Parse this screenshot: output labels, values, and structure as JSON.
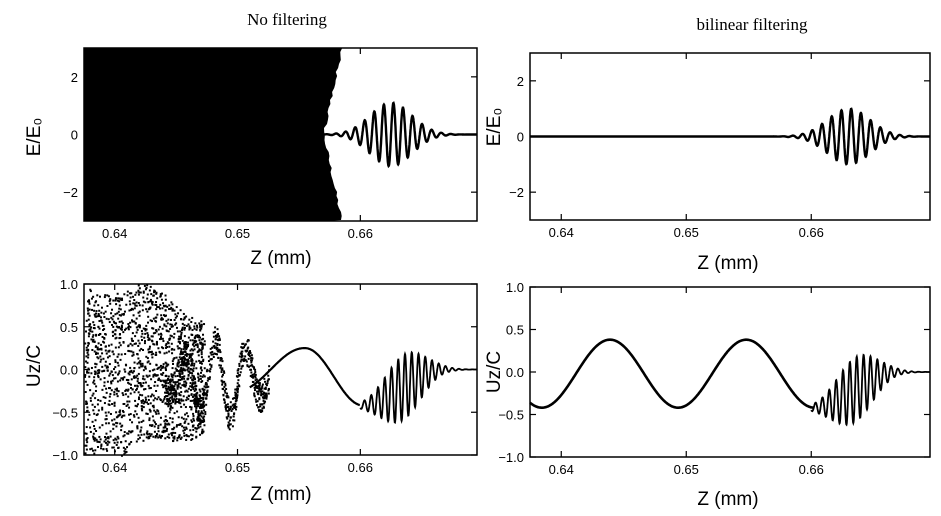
{
  "chart_data": [
    {
      "type": "line",
      "title": "No filtering",
      "xlabel": "Z (mm)",
      "ylabel": "E/E₀",
      "xlim": [
        0.6375,
        0.6695
      ],
      "ylim": [
        -3,
        3
      ],
      "xticks": [
        "0.64",
        "0.65",
        "0.66"
      ],
      "yticks": [
        "−2",
        "0",
        "2"
      ],
      "series": [
        {
          "saturated_region": {
            "x": [
              0.6375,
              0.658
            ],
            "y": [
              -3,
              3
            ]
          },
          "wave_packet": {
            "x_start": 0.657,
            "x_end": 0.669,
            "center": 0.6625,
            "amplitude": 1.1,
            "wavelength": 0.00078
          }
        }
      ]
    },
    {
      "type": "line",
      "title": "bilinear filtering",
      "xlabel": "Z (mm)",
      "ylabel": "E/E₀",
      "xlim": [
        0.6375,
        0.6695
      ],
      "ylim": [
        -3,
        3
      ],
      "xticks": [
        "0.64",
        "0.65",
        "0.66"
      ],
      "yticks": [
        "−2",
        "0",
        "2"
      ],
      "series": [
        {
          "wave_packet": {
            "x_start": 0.657,
            "x_end": 0.669,
            "center": 0.663,
            "amplitude": 1.0,
            "wavelength": 0.00078
          }
        }
      ]
    },
    {
      "type": "scatter",
      "title": "",
      "xlabel": "Z (mm)",
      "ylabel": "Uz/C",
      "xlim": [
        0.6375,
        0.6695
      ],
      "ylim": [
        -1.0,
        1.0
      ],
      "xticks": [
        "0.64",
        "0.65",
        "0.66"
      ],
      "yticks": [
        "1.0",
        "0.5",
        "0.0",
        "−0.5",
        "−1.0"
      ],
      "series": [
        {
          "noise_region": {
            "x": [
              0.6375,
              0.6465
            ],
            "y": [
              -1.0,
              1.0
            ]
          },
          "wake": {
            "x": [
              0.652,
              0.66
            ],
            "peak": 0.25,
            "trough": -0.42
          },
          "wave_packet": {
            "x_start": 0.659,
            "x_end": 0.669,
            "center": 0.6635,
            "amplitude": 0.38
          }
        }
      ]
    },
    {
      "type": "line",
      "title": "",
      "xlabel": "Z (mm)",
      "ylabel": "Uz/C",
      "xlim": [
        0.6375,
        0.6695
      ],
      "ylim": [
        -1.0,
        1.0
      ],
      "xticks": [
        "0.64",
        "0.65",
        "0.66"
      ],
      "yticks": [
        "1.0",
        "0.5",
        "0.0",
        "−0.5",
        "−1.0"
      ],
      "series": [
        {
          "wake": {
            "x": [
              0.6375,
              0.66
            ],
            "peak": 0.38,
            "trough": -0.42,
            "wavelength": 0.0109
          },
          "wave_packet": {
            "x_start": 0.659,
            "x_end": 0.669,
            "center": 0.6635,
            "amplitude": 0.38
          }
        }
      ]
    }
  ]
}
